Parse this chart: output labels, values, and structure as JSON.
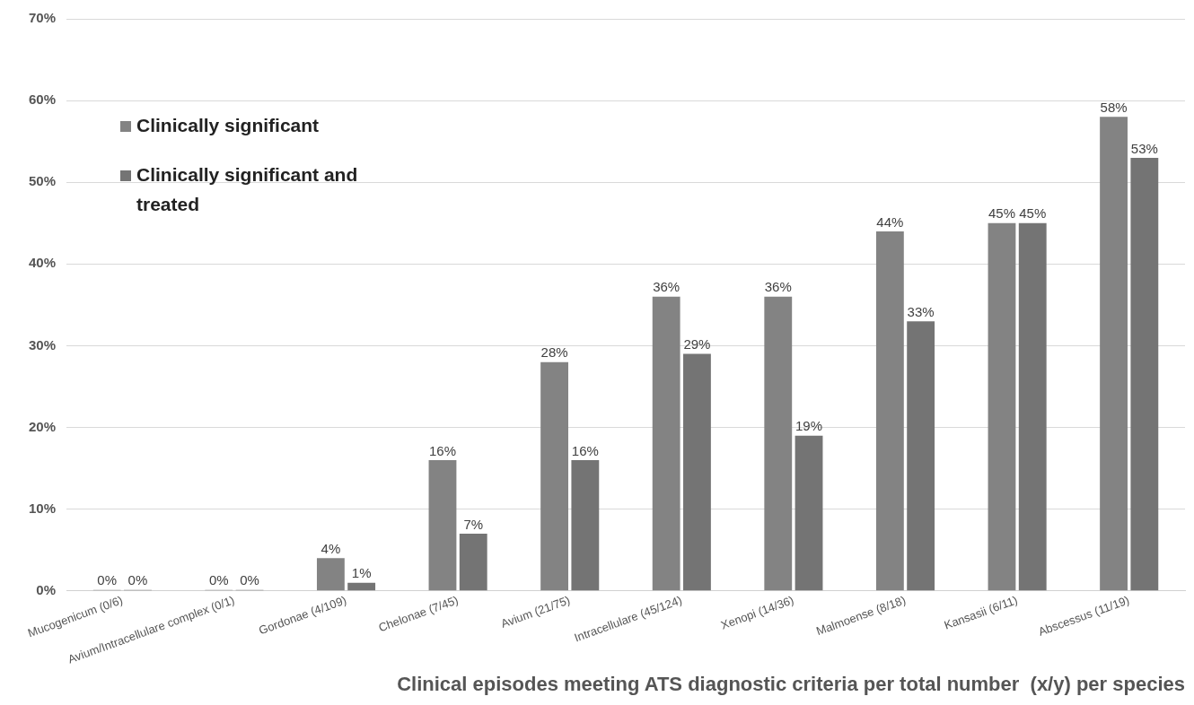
{
  "chart_data": {
    "type": "bar",
    "xlabel": "Clinical episodes meeting ATS diagnostic criteria per total number  (x/y) per species",
    "categories": [
      "Mucogenicum (0/6)",
      "Avium/Intracellulare complex (0/1)",
      "Gordonae (4/109)",
      "Chelonae (7/45)",
      "Avium (21/75)",
      "Intracellulare (45/124)",
      "Xenopi (14/36)",
      "Malmoense (8/18)",
      "Kansasii (6/11)",
      "Abscessus (11/19)"
    ],
    "series": [
      {
        "name": "Clinically significant",
        "color": "#838383",
        "values": [
          0,
          0,
          4,
          16,
          28,
          36,
          36,
          44,
          45,
          58
        ],
        "value_labels": [
          "0%",
          "0%",
          "4%",
          "16%",
          "28%",
          "36%",
          "36%",
          "44%",
          "45%",
          "58%"
        ]
      },
      {
        "name": "Clinically significant and treated",
        "color": "#747474",
        "values": [
          0,
          0,
          1,
          7,
          16,
          29,
          19,
          33,
          45,
          53
        ],
        "value_labels": [
          "0%",
          "0%",
          "1%",
          "7%",
          "16%",
          "29%",
          "19%",
          "33%",
          "45%",
          "53%"
        ]
      }
    ],
    "ylim": [
      0,
      70
    ],
    "yticks": [
      {
        "value": 0,
        "label": "0%"
      },
      {
        "value": 10,
        "label": "10%"
      },
      {
        "value": 20,
        "label": "20%"
      },
      {
        "value": 30,
        "label": "30%"
      },
      {
        "value": 40,
        "label": "40%"
      },
      {
        "value": 50,
        "label": "50%"
      },
      {
        "value": 60,
        "label": "60%"
      },
      {
        "value": 70,
        "label": "70%"
      }
    ],
    "grid": "y",
    "legend": "top left"
  }
}
